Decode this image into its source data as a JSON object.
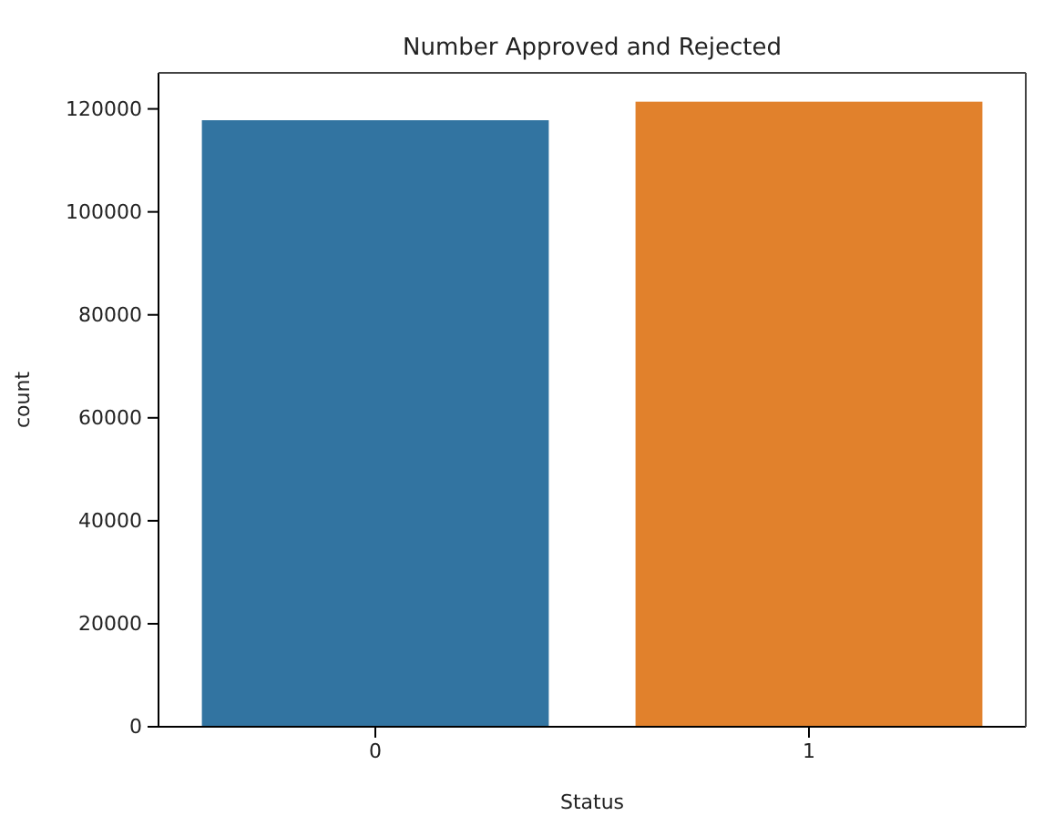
{
  "chart_data": {
    "type": "bar",
    "title": "Number Approved and Rejected",
    "xlabel": "Status",
    "ylabel": "count",
    "categories": [
      "0",
      "1"
    ],
    "values": [
      117800,
      121400
    ],
    "colors": [
      "#3274a1",
      "#e1812c"
    ],
    "ylim": [
      0,
      127000
    ],
    "yticks": [
      0,
      20000,
      40000,
      60000,
      80000,
      100000,
      120000
    ],
    "grid": false
  }
}
